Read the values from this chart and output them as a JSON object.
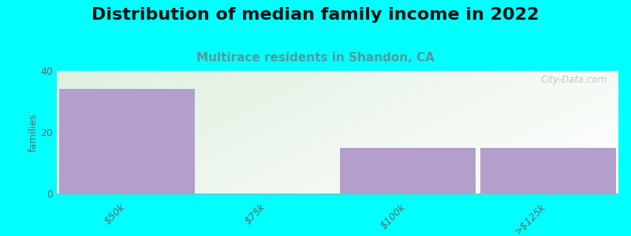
{
  "title": "Distribution of median family income in 2022",
  "subtitle": "Multirace residents in Shandon, CA",
  "categories": [
    "$50k",
    "$75k",
    "$100k",
    ">$125k"
  ],
  "values": [
    34,
    0,
    15,
    15
  ],
  "bar_colors": [
    "#b49fcc",
    "#d8edc0",
    "#b49fcc",
    "#b49fcc"
  ],
  "background_color": "#00ffff",
  "plot_bg_top_left": "#e0f0dc",
  "plot_bg_top_right": "#f0f8ee",
  "plot_bg_bottom": "#f5faf3",
  "ylabel": "families",
  "ylim": [
    0,
    40
  ],
  "yticks": [
    0,
    20,
    40
  ],
  "title_fontsize": 16,
  "subtitle_fontsize": 11,
  "subtitle_color": "#559999",
  "tick_label_color": "#666666",
  "axis_color": "#aaaaaa",
  "watermark_text": "City-Data.com",
  "watermark_color": "#aabbbb"
}
